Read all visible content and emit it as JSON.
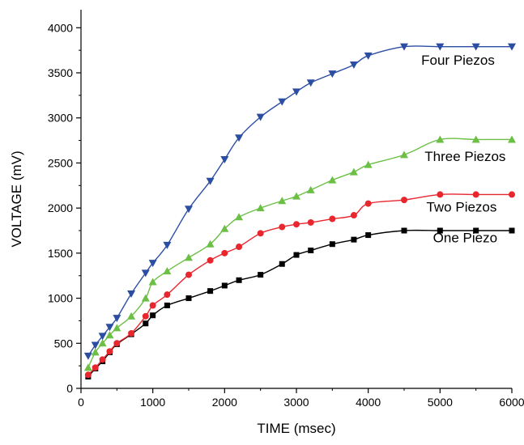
{
  "chart_data": {
    "type": "line",
    "title": "",
    "xlabel": "TIME (msec)",
    "ylabel": "VOLTAGE (mV)",
    "xlim": [
      0,
      6000
    ],
    "ylim": [
      0,
      4200
    ],
    "xticks": [
      0,
      1000,
      2000,
      3000,
      4000,
      5000,
      6000
    ],
    "yticks": [
      0,
      500,
      1000,
      1500,
      2000,
      2500,
      3000,
      3500,
      4000
    ],
    "grid": false,
    "legend": "labels at series ends",
    "series": [
      {
        "name": "One Piezo",
        "color": "#000000",
        "marker": "square",
        "x": [
          100,
          200,
          300,
          400,
          500,
          700,
          900,
          1000,
          1200,
          1500,
          1800,
          2000,
          2200,
          2500,
          2800,
          3000,
          3200,
          3500,
          3800,
          4000,
          4500,
          5000,
          5500,
          6000
        ],
        "y": [
          130,
          220,
          300,
          400,
          490,
          600,
          720,
          810,
          920,
          1000,
          1080,
          1140,
          1200,
          1260,
          1380,
          1480,
          1530,
          1600,
          1650,
          1700,
          1750,
          1750,
          1750,
          1750
        ]
      },
      {
        "name": "Two Piezos",
        "color": "#e8262d",
        "marker": "circle",
        "x": [
          100,
          200,
          300,
          400,
          500,
          700,
          900,
          1000,
          1200,
          1500,
          1800,
          2000,
          2200,
          2500,
          2800,
          3000,
          3200,
          3500,
          3800,
          4000,
          4500,
          5000,
          5500,
          6000
        ],
        "y": [
          150,
          230,
          320,
          410,
          500,
          610,
          800,
          920,
          1040,
          1260,
          1420,
          1500,
          1570,
          1720,
          1790,
          1820,
          1840,
          1880,
          1920,
          2050,
          2090,
          2150,
          2150,
          2150
        ]
      },
      {
        "name": "Three Piezos",
        "color": "#6cbf45",
        "marker": "triangle-up",
        "x": [
          100,
          200,
          300,
          400,
          500,
          700,
          900,
          1000,
          1200,
          1500,
          1800,
          2000,
          2200,
          2500,
          2800,
          3000,
          3200,
          3500,
          3800,
          4000,
          4500,
          5000,
          5500,
          6000
        ],
        "y": [
          230,
          400,
          500,
          590,
          670,
          800,
          1000,
          1180,
          1300,
          1450,
          1600,
          1770,
          1900,
          2000,
          2080,
          2130,
          2200,
          2310,
          2400,
          2480,
          2590,
          2760,
          2760,
          2760
        ]
      },
      {
        "name": "Four Piezos",
        "color": "#2b4ea2",
        "marker": "triangle-down",
        "x": [
          100,
          200,
          300,
          400,
          500,
          700,
          900,
          1000,
          1200,
          1500,
          1800,
          2000,
          2200,
          2500,
          2800,
          3000,
          3200,
          3500,
          3800,
          4000,
          4500,
          5000,
          5500,
          6000
        ],
        "y": [
          360,
          480,
          580,
          680,
          780,
          1050,
          1280,
          1390,
          1590,
          1990,
          2300,
          2540,
          2780,
          3010,
          3180,
          3290,
          3390,
          3490,
          3590,
          3690,
          3790,
          3790,
          3790,
          3790
        ]
      }
    ]
  }
}
